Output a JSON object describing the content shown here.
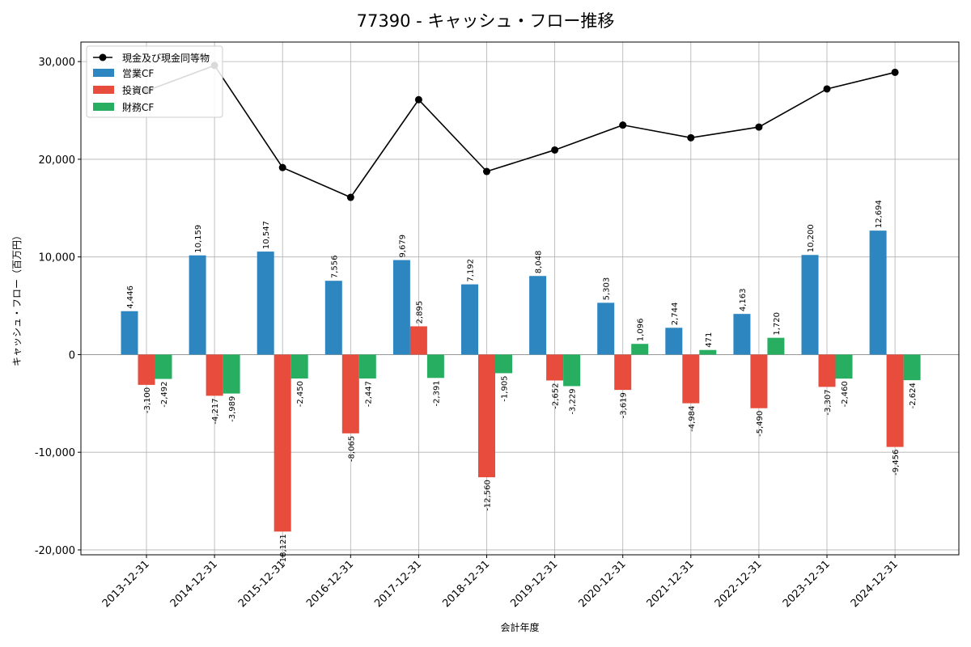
{
  "chart_data": {
    "type": "bar",
    "title": "77390 - キャッシュ・フロー推移",
    "xlabel": "会計年度",
    "ylabel": "キャッシュ・フロー（百万円）",
    "ylim": [
      -20500,
      32000
    ],
    "yticks": [
      -20000,
      -10000,
      0,
      10000,
      20000,
      30000
    ],
    "ytick_labels": [
      "-20,000",
      "-10,000",
      "0",
      "10,000",
      "20,000",
      "30,000"
    ],
    "grid": true,
    "legend_position": "top-left",
    "categories": [
      "2013-12-31",
      "2014-12-31",
      "2015-12-31",
      "2016-12-31",
      "2017-12-31",
      "2018-12-31",
      "2019-12-31",
      "2020-12-31",
      "2021-12-31",
      "2022-12-31",
      "2023-12-31",
      "2024-12-31"
    ],
    "line": {
      "name": "現金及び現金同等物",
      "color": "#000000",
      "values": [
        27000,
        29600,
        19150,
        16100,
        26100,
        18750,
        20950,
        23500,
        22200,
        23300,
        27200,
        28900
      ]
    },
    "series": [
      {
        "name": "営業CF",
        "color": "#2e86c1",
        "values": [
          4446,
          10159,
          10547,
          7556,
          9679,
          7192,
          8048,
          5303,
          2744,
          4163,
          10200,
          12694
        ],
        "labels": [
          "4,446",
          "10,159",
          "10,547",
          "7,556",
          "9,679",
          "7,192",
          "8,048",
          "5,303",
          "2,744",
          "4,163",
          "10,200",
          "12,694"
        ]
      },
      {
        "name": "投資CF",
        "color": "#e74c3c",
        "values": [
          -3100,
          -4217,
          -18121,
          -8065,
          2895,
          -12560,
          -2652,
          -3619,
          -4984,
          -5490,
          -3307,
          -9456
        ],
        "labels": [
          "-3,100",
          "-4,217",
          "-18,121",
          "-8,065",
          "2,895",
          "-12,560",
          "-2,652",
          "-3,619",
          "-4,984",
          "-5,490",
          "-3,307",
          "-9,456"
        ]
      },
      {
        "name": "財務CF",
        "color": "#27ae60",
        "values": [
          -2492,
          -3989,
          -2450,
          -2447,
          -2391,
          -1905,
          -3229,
          1096,
          471,
          1720,
          -2460,
          -2624
        ],
        "labels": [
          "-2,492",
          "-3,989",
          "-2,450",
          "-2,447",
          "-2,391",
          "-1,905",
          "-3,229",
          "1,096",
          "471",
          "1,720",
          "-2,460",
          "-2,624"
        ]
      }
    ]
  }
}
